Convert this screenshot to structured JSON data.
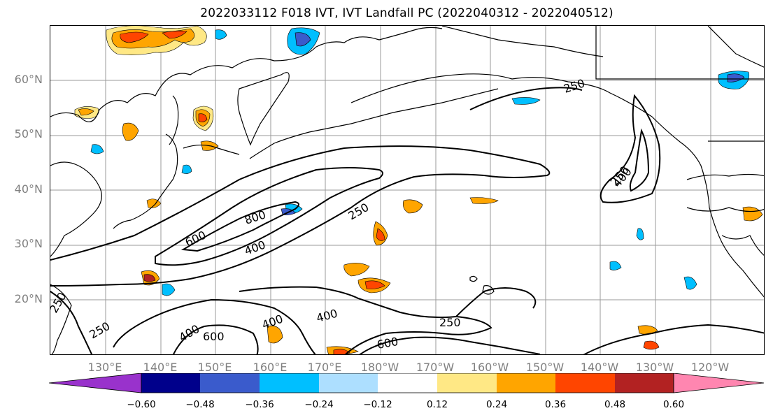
{
  "title": "2022033112 F018 IVT, IVT Landfall PC (2022040312 - 2022040512)",
  "latitude_labels": [
    "60°N",
    "50°N",
    "40°N",
    "30°N",
    "20°N"
  ],
  "longitude_labels": [
    "130°E",
    "140°E",
    "150°E",
    "160°E",
    "170°E",
    "180°W",
    "170°W",
    "160°W",
    "150°W",
    "140°W",
    "130°W",
    "120°W"
  ],
  "contour_labels": [
    "250",
    "250",
    "250",
    "250",
    "250",
    "400",
    "400",
    "400",
    "400",
    "600",
    "600",
    "600",
    "800",
    "250",
    "400"
  ],
  "colorbar": {
    "ticks": [
      "−0.60",
      "−0.48",
      "−0.36",
      "−0.24",
      "−0.12",
      "0.12",
      "0.24",
      "0.36",
      "0.48",
      "0.60"
    ],
    "colors": [
      "#9932CC",
      "#00008B",
      "#3A5BCC",
      "#00BFFF",
      "#ADDFFF",
      "#FFFFFF",
      "#FFE885",
      "#FFA500",
      "#FF4500",
      "#B22222",
      "#FF86B0"
    ]
  },
  "colors": {
    "contour": "#000000",
    "coast": "#000000",
    "grid": "#9a9a9a",
    "axis_text": "#808080"
  }
}
